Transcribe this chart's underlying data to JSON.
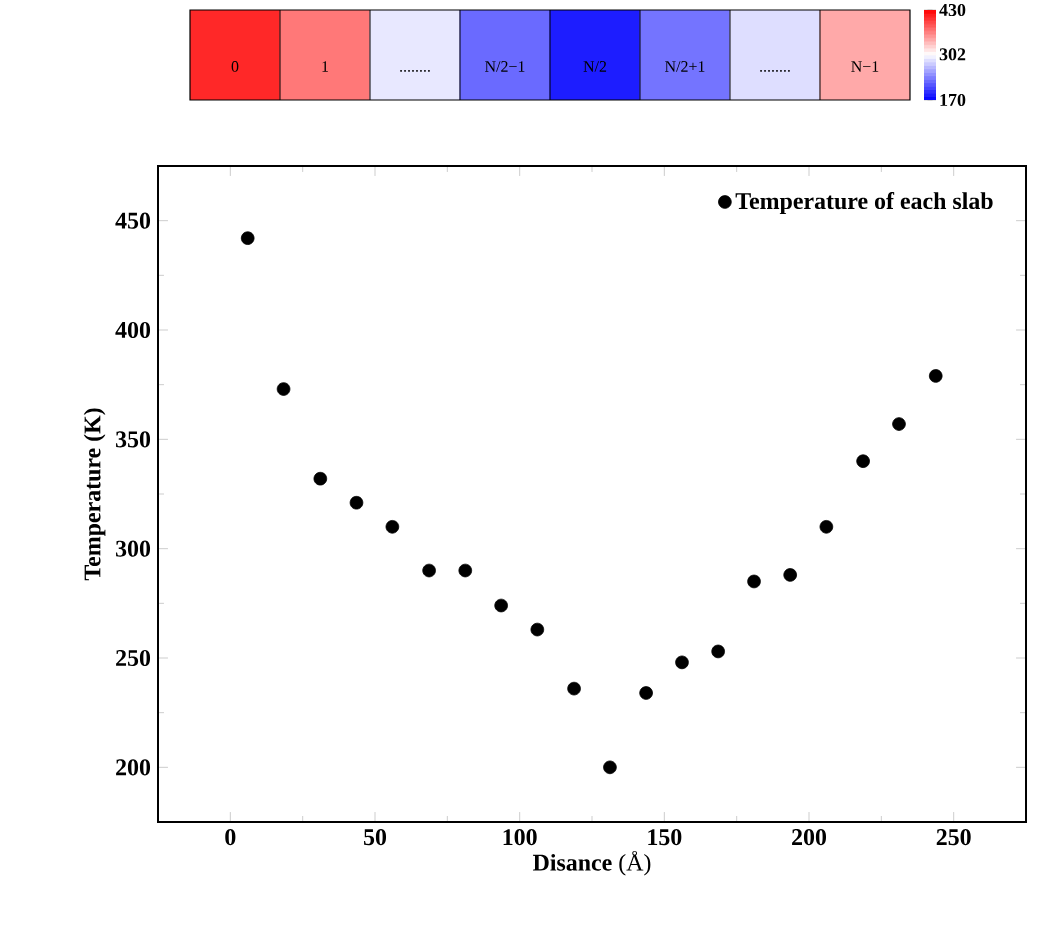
{
  "chart_data": [
    {
      "type": "heatmap",
      "categories": [
        "0",
        "1",
        "........",
        "N/2−1",
        "N/2",
        "N/2+1",
        "........",
        "N−1"
      ],
      "y_categories": [
        null
      ],
      "cells": [
        [
          410,
          370,
          290,
          225,
          185,
          230,
          285,
          345
        ]
      ],
      "clim": [
        170,
        430
      ],
      "cticks": [
        170,
        302,
        430
      ]
    },
    {
      "type": "scatter",
      "xlabel": "**Disance** (Å)",
      "ylabel": "Temperature (K)",
      "xlim": [
        -25,
        275
      ],
      "ylim": [
        175,
        475
      ],
      "xticks": [
        0,
        50,
        100,
        150,
        200,
        250
      ],
      "yticks": [
        200,
        250,
        300,
        350,
        400,
        450
      ],
      "marker": "circle",
      "legend": "top right",
      "series": [
        {
          "name": "Temperature of each slab",
          "color": "#000000",
          "x": [
            6,
            18.4,
            31.1,
            43.6,
            56,
            68.7,
            81.2,
            93.6,
            106.1,
            118.8,
            131.2,
            143.7,
            156.1,
            168.6,
            181,
            193.5,
            206,
            218.7,
            231.1,
            243.8
          ],
          "values": [
            442,
            373,
            332,
            321,
            310,
            290,
            290,
            274,
            263,
            236,
            200,
            234,
            248,
            253,
            285,
            288,
            310,
            340,
            357,
            379
          ]
        }
      ]
    }
  ]
}
